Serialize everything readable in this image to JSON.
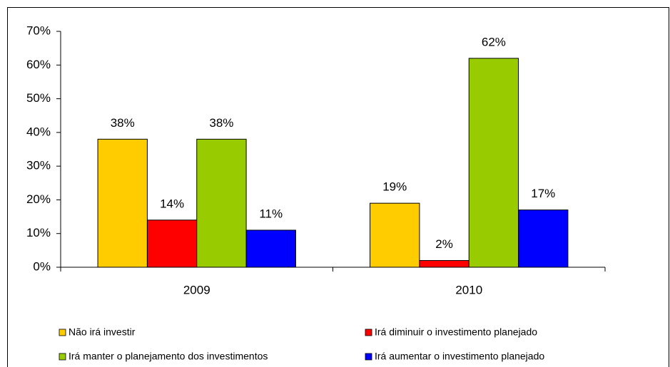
{
  "chart_data": {
    "type": "bar",
    "categories": [
      "2009",
      "2010"
    ],
    "series": [
      {
        "name": "Não irá investir",
        "color": "#FFCC00",
        "values": [
          38,
          19
        ],
        "value_labels": [
          "38%",
          "19%"
        ]
      },
      {
        "name": "Irá diminuir o investimento planejado",
        "color": "#FF0000",
        "values": [
          14,
          2
        ],
        "value_labels": [
          "14%",
          "2%"
        ]
      },
      {
        "name": "Irá manter o planejamento dos investimentos",
        "color": "#99CC00",
        "values": [
          38,
          62
        ],
        "value_labels": [
          "38%",
          "62%"
        ]
      },
      {
        "name": "Irá aumentar o investimento planejado",
        "color": "#0000FF",
        "values": [
          11,
          17
        ],
        "value_labels": [
          "11%",
          "17%"
        ]
      }
    ],
    "ylim": [
      0,
      70
    ],
    "yticks": [
      {
        "value": 0,
        "label": "0%"
      },
      {
        "value": 10,
        "label": "10%"
      },
      {
        "value": 20,
        "label": "20%"
      },
      {
        "value": 30,
        "label": "30%"
      },
      {
        "value": 40,
        "label": "40%"
      },
      {
        "value": 50,
        "label": "50%"
      },
      {
        "value": 60,
        "label": "60%"
      },
      {
        "value": 70,
        "label": "70%"
      }
    ],
    "legend": "bottom"
  }
}
